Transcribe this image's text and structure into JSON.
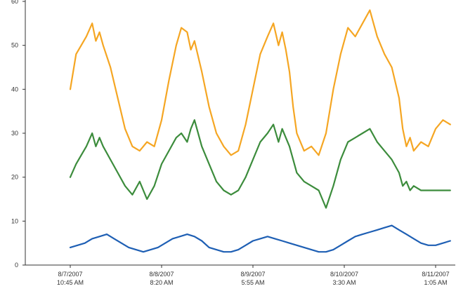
{
  "chart_data": {
    "type": "line",
    "title": "",
    "xlabel": "",
    "ylabel": "",
    "ylim": [
      0,
      60
    ],
    "yticks": [
      0,
      10,
      20,
      30,
      40,
      50,
      60
    ],
    "ytick_labels": [
      "0",
      "10",
      "20",
      "30",
      "40",
      "50",
      "60"
    ],
    "xlim": [
      0,
      5.2
    ],
    "xticks": [
      {
        "x": 0,
        "line1": "8/7/2007",
        "line2": "10:45 AM"
      },
      {
        "x": 1.25,
        "line1": "8/8/2007",
        "line2": "8:20 AM"
      },
      {
        "x": 2.5,
        "line1": "8/9/2007",
        "line2": "5:55 AM"
      },
      {
        "x": 3.75,
        "line1": "8/10/2007",
        "line2": "3:30 AM"
      },
      {
        "x": 5.0,
        "line1": "8/11/2007",
        "line2": "1:05 AM"
      }
    ],
    "legend": "none",
    "grid": false,
    "series": [
      {
        "color": "#F5A623",
        "x": [
          0.0,
          0.08,
          0.15,
          0.22,
          0.3,
          0.35,
          0.4,
          0.45,
          0.55,
          0.65,
          0.75,
          0.85,
          0.95,
          1.05,
          1.15,
          1.25,
          1.35,
          1.45,
          1.52,
          1.6,
          1.65,
          1.7,
          1.8,
          1.9,
          2.0,
          2.1,
          2.2,
          2.3,
          2.4,
          2.5,
          2.6,
          2.7,
          2.78,
          2.85,
          2.9,
          2.95,
          3.0,
          3.05,
          3.1,
          3.2,
          3.3,
          3.4,
          3.5,
          3.6,
          3.7,
          3.8,
          3.9,
          4.0,
          4.1,
          4.2,
          4.3,
          4.4,
          4.5,
          4.55,
          4.6,
          4.65,
          4.7,
          4.8,
          4.9,
          5.0,
          5.1,
          5.2
        ],
        "values": [
          40,
          48,
          50,
          52,
          55,
          51,
          53,
          50,
          45,
          38,
          31,
          27,
          26,
          28,
          27,
          33,
          42,
          50,
          54,
          53,
          49,
          51,
          44,
          36,
          30,
          27,
          25,
          26,
          32,
          40,
          48,
          52,
          55,
          50,
          53,
          49,
          44,
          36,
          30,
          26,
          27,
          25,
          30,
          40,
          48,
          54,
          52,
          55,
          58,
          52,
          48,
          45,
          38,
          31,
          27,
          29,
          26,
          28,
          27,
          31,
          33,
          32
        ]
      },
      {
        "color": "#3C8C3C",
        "x": [
          0.0,
          0.08,
          0.15,
          0.22,
          0.3,
          0.35,
          0.4,
          0.45,
          0.55,
          0.65,
          0.75,
          0.85,
          0.95,
          1.05,
          1.15,
          1.25,
          1.35,
          1.45,
          1.52,
          1.6,
          1.65,
          1.7,
          1.8,
          1.9,
          2.0,
          2.1,
          2.2,
          2.3,
          2.4,
          2.5,
          2.6,
          2.7,
          2.78,
          2.85,
          2.9,
          2.95,
          3.0,
          3.05,
          3.1,
          3.2,
          3.3,
          3.4,
          3.5,
          3.6,
          3.7,
          3.8,
          3.9,
          4.0,
          4.1,
          4.2,
          4.3,
          4.4,
          4.5,
          4.55,
          4.6,
          4.65,
          4.7,
          4.8,
          4.9,
          5.0,
          5.1,
          5.2
        ],
        "values": [
          20,
          23,
          25,
          27,
          30,
          27,
          29,
          27,
          24,
          21,
          18,
          16,
          19,
          15,
          18,
          23,
          26,
          29,
          30,
          28,
          31,
          33,
          27,
          23,
          19,
          17,
          16,
          17,
          20,
          24,
          28,
          30,
          32,
          28,
          31,
          29,
          27,
          24,
          21,
          19,
          18,
          17,
          13,
          18,
          24,
          28,
          29,
          30,
          31,
          28,
          26,
          24,
          21,
          18,
          19,
          17,
          18,
          17,
          17,
          17,
          17,
          17
        ]
      },
      {
        "color": "#1E5FB4",
        "x": [
          0.0,
          0.1,
          0.2,
          0.3,
          0.4,
          0.5,
          0.6,
          0.7,
          0.8,
          0.9,
          1.0,
          1.1,
          1.2,
          1.3,
          1.4,
          1.5,
          1.6,
          1.7,
          1.8,
          1.9,
          2.0,
          2.1,
          2.2,
          2.3,
          2.4,
          2.5,
          2.6,
          2.7,
          2.8,
          2.9,
          3.0,
          3.1,
          3.2,
          3.3,
          3.4,
          3.5,
          3.6,
          3.7,
          3.8,
          3.9,
          4.0,
          4.1,
          4.2,
          4.3,
          4.4,
          4.5,
          4.6,
          4.7,
          4.8,
          4.9,
          5.0,
          5.1,
          5.2
        ],
        "values": [
          4,
          4.5,
          5,
          6,
          6.5,
          7,
          6,
          5,
          4,
          3.5,
          3,
          3.5,
          4,
          5,
          6,
          6.5,
          7,
          6.5,
          5.5,
          4,
          3.5,
          3,
          3,
          3.5,
          4.5,
          5.5,
          6,
          6.5,
          6,
          5.5,
          5,
          4.5,
          4,
          3.5,
          3,
          3,
          3.5,
          4.5,
          5.5,
          6.5,
          7,
          7.5,
          8,
          8.5,
          9,
          8,
          7,
          6,
          5,
          4.5,
          4.5,
          5,
          5.5
        ]
      }
    ]
  }
}
